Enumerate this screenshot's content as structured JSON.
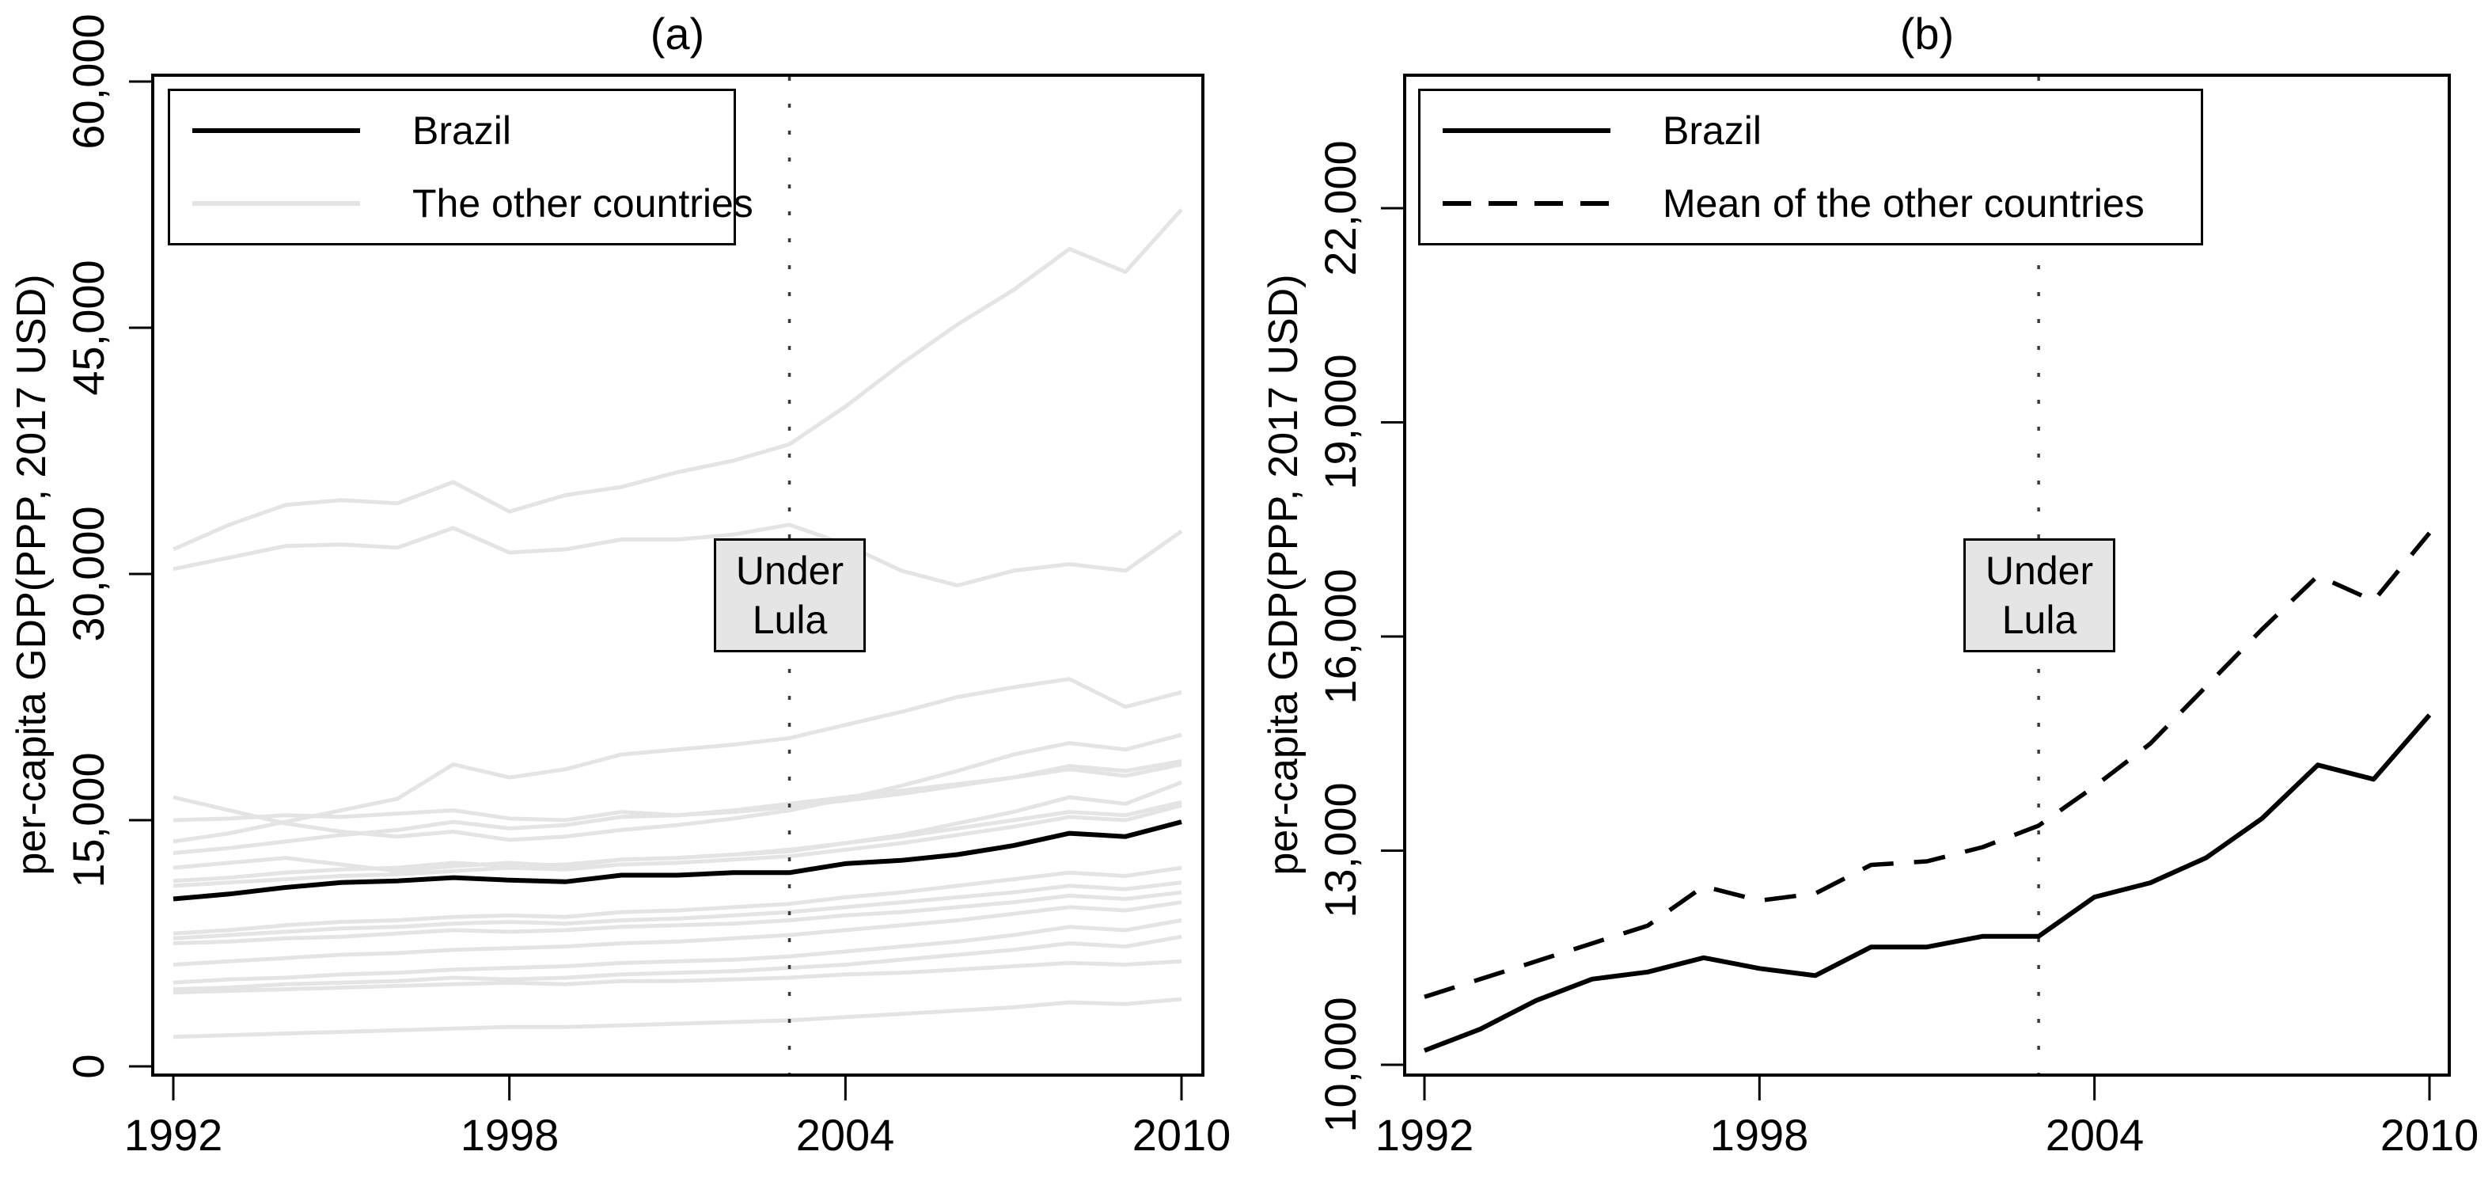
{
  "colors": {
    "brazil_line": "#000000",
    "other_country_line": "#e4e4e4",
    "annotation_background": "#e5e5e5",
    "vline": "#3a3a3a",
    "axis": "#000000"
  },
  "chart_data": [
    {
      "type": "line",
      "title": "(a)",
      "xlabel": "",
      "ylabel": "per-capita GDP(PPP, 2017 USD)",
      "x": [
        1992,
        1993,
        1994,
        1995,
        1996,
        1997,
        1998,
        1999,
        2000,
        2001,
        2002,
        2003,
        2004,
        2005,
        2006,
        2007,
        2008,
        2009,
        2010
      ],
      "x_tick_labels": [
        "1992",
        "1998",
        "2004",
        "2010"
      ],
      "x_tick_years": [
        1992,
        1998,
        2004,
        2010
      ],
      "ylim": [
        0,
        62400
      ],
      "y_ticks": [
        0,
        15000,
        30000,
        45000,
        60000
      ],
      "y_tick_labels": [
        "0",
        "15,000",
        "30,000",
        "45,000",
        "60,000"
      ],
      "grid": false,
      "legend": [
        "Brazil",
        "The other countries"
      ],
      "legend_position": "top-left",
      "vline": {
        "x": 2003,
        "style": "dotted",
        "label_lines": [
          "Under",
          "Lula"
        ]
      },
      "series": [
        {
          "name": "Brazil",
          "style": "solid-black",
          "values": [
            10200,
            10500,
            10900,
            11200,
            11300,
            11500,
            11350,
            11250,
            11650,
            11650,
            11800,
            11800,
            12350,
            12550,
            12900,
            13450,
            14200,
            14000,
            14900
          ]
        },
        {
          "name": "other-01",
          "style": "solid-lightgray",
          "values": [
            31500,
            33000,
            34200,
            34500,
            34300,
            35600,
            33800,
            34800,
            35300,
            36200,
            36900,
            37900,
            40200,
            42800,
            45200,
            47300,
            49800,
            48400,
            52200
          ]
        },
        {
          "name": "other-02",
          "style": "solid-lightgray",
          "values": [
            30300,
            31000,
            31700,
            31800,
            31600,
            32800,
            31300,
            31500,
            32100,
            32100,
            32400,
            33000,
            31800,
            30200,
            29300,
            30200,
            30600,
            30200,
            32600
          ]
        },
        {
          "name": "other-03",
          "style": "solid-lightgray",
          "values": [
            13700,
            14200,
            14900,
            15600,
            16300,
            18400,
            17600,
            18100,
            19000,
            19300,
            19600,
            20000,
            20800,
            21600,
            22500,
            23100,
            23600,
            21900,
            22800
          ]
        },
        {
          "name": "other-04",
          "style": "solid-lightgray",
          "values": [
            16400,
            15600,
            14800,
            14300,
            14000,
            14300,
            13800,
            14000,
            14400,
            14700,
            15100,
            15600,
            16300,
            17100,
            18000,
            19000,
            19700,
            19300,
            20200
          ]
        },
        {
          "name": "other-05",
          "style": "solid-lightgray",
          "values": [
            15000,
            15100,
            15300,
            15200,
            15400,
            15600,
            15100,
            15000,
            15500,
            15300,
            15600,
            16000,
            16400,
            16800,
            17200,
            17600,
            18300,
            18000,
            18600
          ]
        },
        {
          "name": "other-06",
          "style": "solid-lightgray",
          "values": [
            13000,
            13300,
            13700,
            14100,
            14400,
            14900,
            14500,
            14700,
            15200,
            15300,
            15500,
            15800,
            16200,
            16600,
            17100,
            17600,
            18100,
            17700,
            18400
          ]
        },
        {
          "name": "other-07",
          "style": "solid-lightgray",
          "values": [
            12100,
            12400,
            12700,
            12300,
            11900,
            12200,
            12400,
            12200,
            12600,
            12700,
            12900,
            13100,
            13600,
            14100,
            14800,
            15500,
            16400,
            16000,
            17300
          ]
        },
        {
          "name": "other-08",
          "style": "solid-lightgray",
          "values": [
            11300,
            11500,
            11800,
            12000,
            12100,
            12400,
            12200,
            12300,
            12600,
            12700,
            12900,
            13200,
            13600,
            14000,
            14500,
            15000,
            15500,
            15300,
            16100
          ]
        },
        {
          "name": "other-09",
          "style": "solid-lightgray",
          "values": [
            11000,
            11200,
            11400,
            11600,
            11700,
            11900,
            12100,
            12000,
            12300,
            12400,
            12600,
            12800,
            13200,
            13600,
            14100,
            14600,
            15200,
            15000,
            15900
          ]
        },
        {
          "name": "other-10",
          "style": "solid-lightgray",
          "values": [
            8100,
            8300,
            8600,
            8800,
            8900,
            9100,
            9200,
            9100,
            9400,
            9500,
            9700,
            9900,
            10300,
            10600,
            11000,
            11400,
            11800,
            11600,
            12100
          ]
        },
        {
          "name": "other-11",
          "style": "solid-lightgray",
          "values": [
            7800,
            8000,
            8200,
            8400,
            8500,
            8700,
            8800,
            8700,
            8900,
            9000,
            9200,
            9400,
            9700,
            10000,
            10300,
            10600,
            11000,
            10800,
            11200
          ]
        },
        {
          "name": "other-12",
          "style": "solid-lightgray",
          "values": [
            7500,
            7600,
            7800,
            7900,
            8100,
            8300,
            8200,
            8300,
            8500,
            8600,
            8700,
            8900,
            9200,
            9400,
            9700,
            10000,
            10400,
            10200,
            10600
          ]
        },
        {
          "name": "other-13",
          "style": "solid-lightgray",
          "values": [
            6200,
            6400,
            6600,
            6800,
            6900,
            7100,
            7200,
            7300,
            7500,
            7600,
            7800,
            8000,
            8300,
            8600,
            8900,
            9300,
            9700,
            9500,
            10000
          ]
        },
        {
          "name": "other-14",
          "style": "solid-lightgray",
          "values": [
            5100,
            5300,
            5400,
            5600,
            5700,
            5900,
            6000,
            6100,
            6300,
            6400,
            6500,
            6700,
            7000,
            7300,
            7600,
            8000,
            8500,
            8300,
            8900
          ]
        },
        {
          "name": "other-15",
          "style": "solid-lightgray",
          "values": [
            4700,
            4800,
            5000,
            5100,
            5200,
            5400,
            5300,
            5400,
            5600,
            5700,
            5800,
            6000,
            6200,
            6500,
            6800,
            7100,
            7500,
            7300,
            7900
          ]
        },
        {
          "name": "other-16",
          "style": "solid-lightgray",
          "values": [
            4500,
            4600,
            4700,
            4800,
            4900,
            5000,
            5100,
            5000,
            5200,
            5200,
            5300,
            5400,
            5600,
            5700,
            5900,
            6100,
            6300,
            6200,
            6400
          ]
        },
        {
          "name": "other-17",
          "style": "solid-lightgray",
          "values": [
            1800,
            1900,
            2000,
            2100,
            2200,
            2300,
            2400,
            2400,
            2500,
            2600,
            2700,
            2800,
            3000,
            3200,
            3400,
            3600,
            3900,
            3800,
            4100
          ]
        }
      ]
    },
    {
      "type": "line",
      "title": "(b)",
      "xlabel": "",
      "ylabel": "per-capita GDP(PPP, 2017 USD)",
      "x": [
        1992,
        1993,
        1994,
        1995,
        1996,
        1997,
        1998,
        1999,
        2000,
        2001,
        2002,
        2003,
        2004,
        2005,
        2006,
        2007,
        2008,
        2009,
        2010
      ],
      "x_tick_labels": [
        "1992",
        "1998",
        "2004",
        "2010"
      ],
      "x_tick_years": [
        1992,
        1998,
        2004,
        2010
      ],
      "ylim": [
        9700,
        23900
      ],
      "y_ticks": [
        10000,
        13000,
        16000,
        19000,
        22000
      ],
      "y_tick_labels": [
        "10,000",
        "13,000",
        "16,000",
        "19,000",
        "22,000"
      ],
      "grid": false,
      "legend": [
        "Brazil",
        "Mean of the other countries"
      ],
      "legend_position": "top-left",
      "vline": {
        "x": 2003,
        "style": "dotted",
        "label_lines": [
          "Under",
          "Lula"
        ]
      },
      "series": [
        {
          "name": "Brazil",
          "style": "solid-black",
          "values": [
            10200,
            10500,
            10900,
            11200,
            11300,
            11500,
            11350,
            11250,
            11650,
            11650,
            11800,
            11800,
            12350,
            12550,
            12900,
            13450,
            14200,
            14000,
            14900
          ]
        },
        {
          "name": "Mean of the other countries",
          "style": "dashed-black",
          "values": [
            10950,
            11200,
            11450,
            11700,
            11950,
            12500,
            12300,
            12400,
            12800,
            12850,
            13050,
            13350,
            13900,
            14500,
            15300,
            16100,
            16850,
            16500,
            17450
          ]
        }
      ]
    }
  ]
}
